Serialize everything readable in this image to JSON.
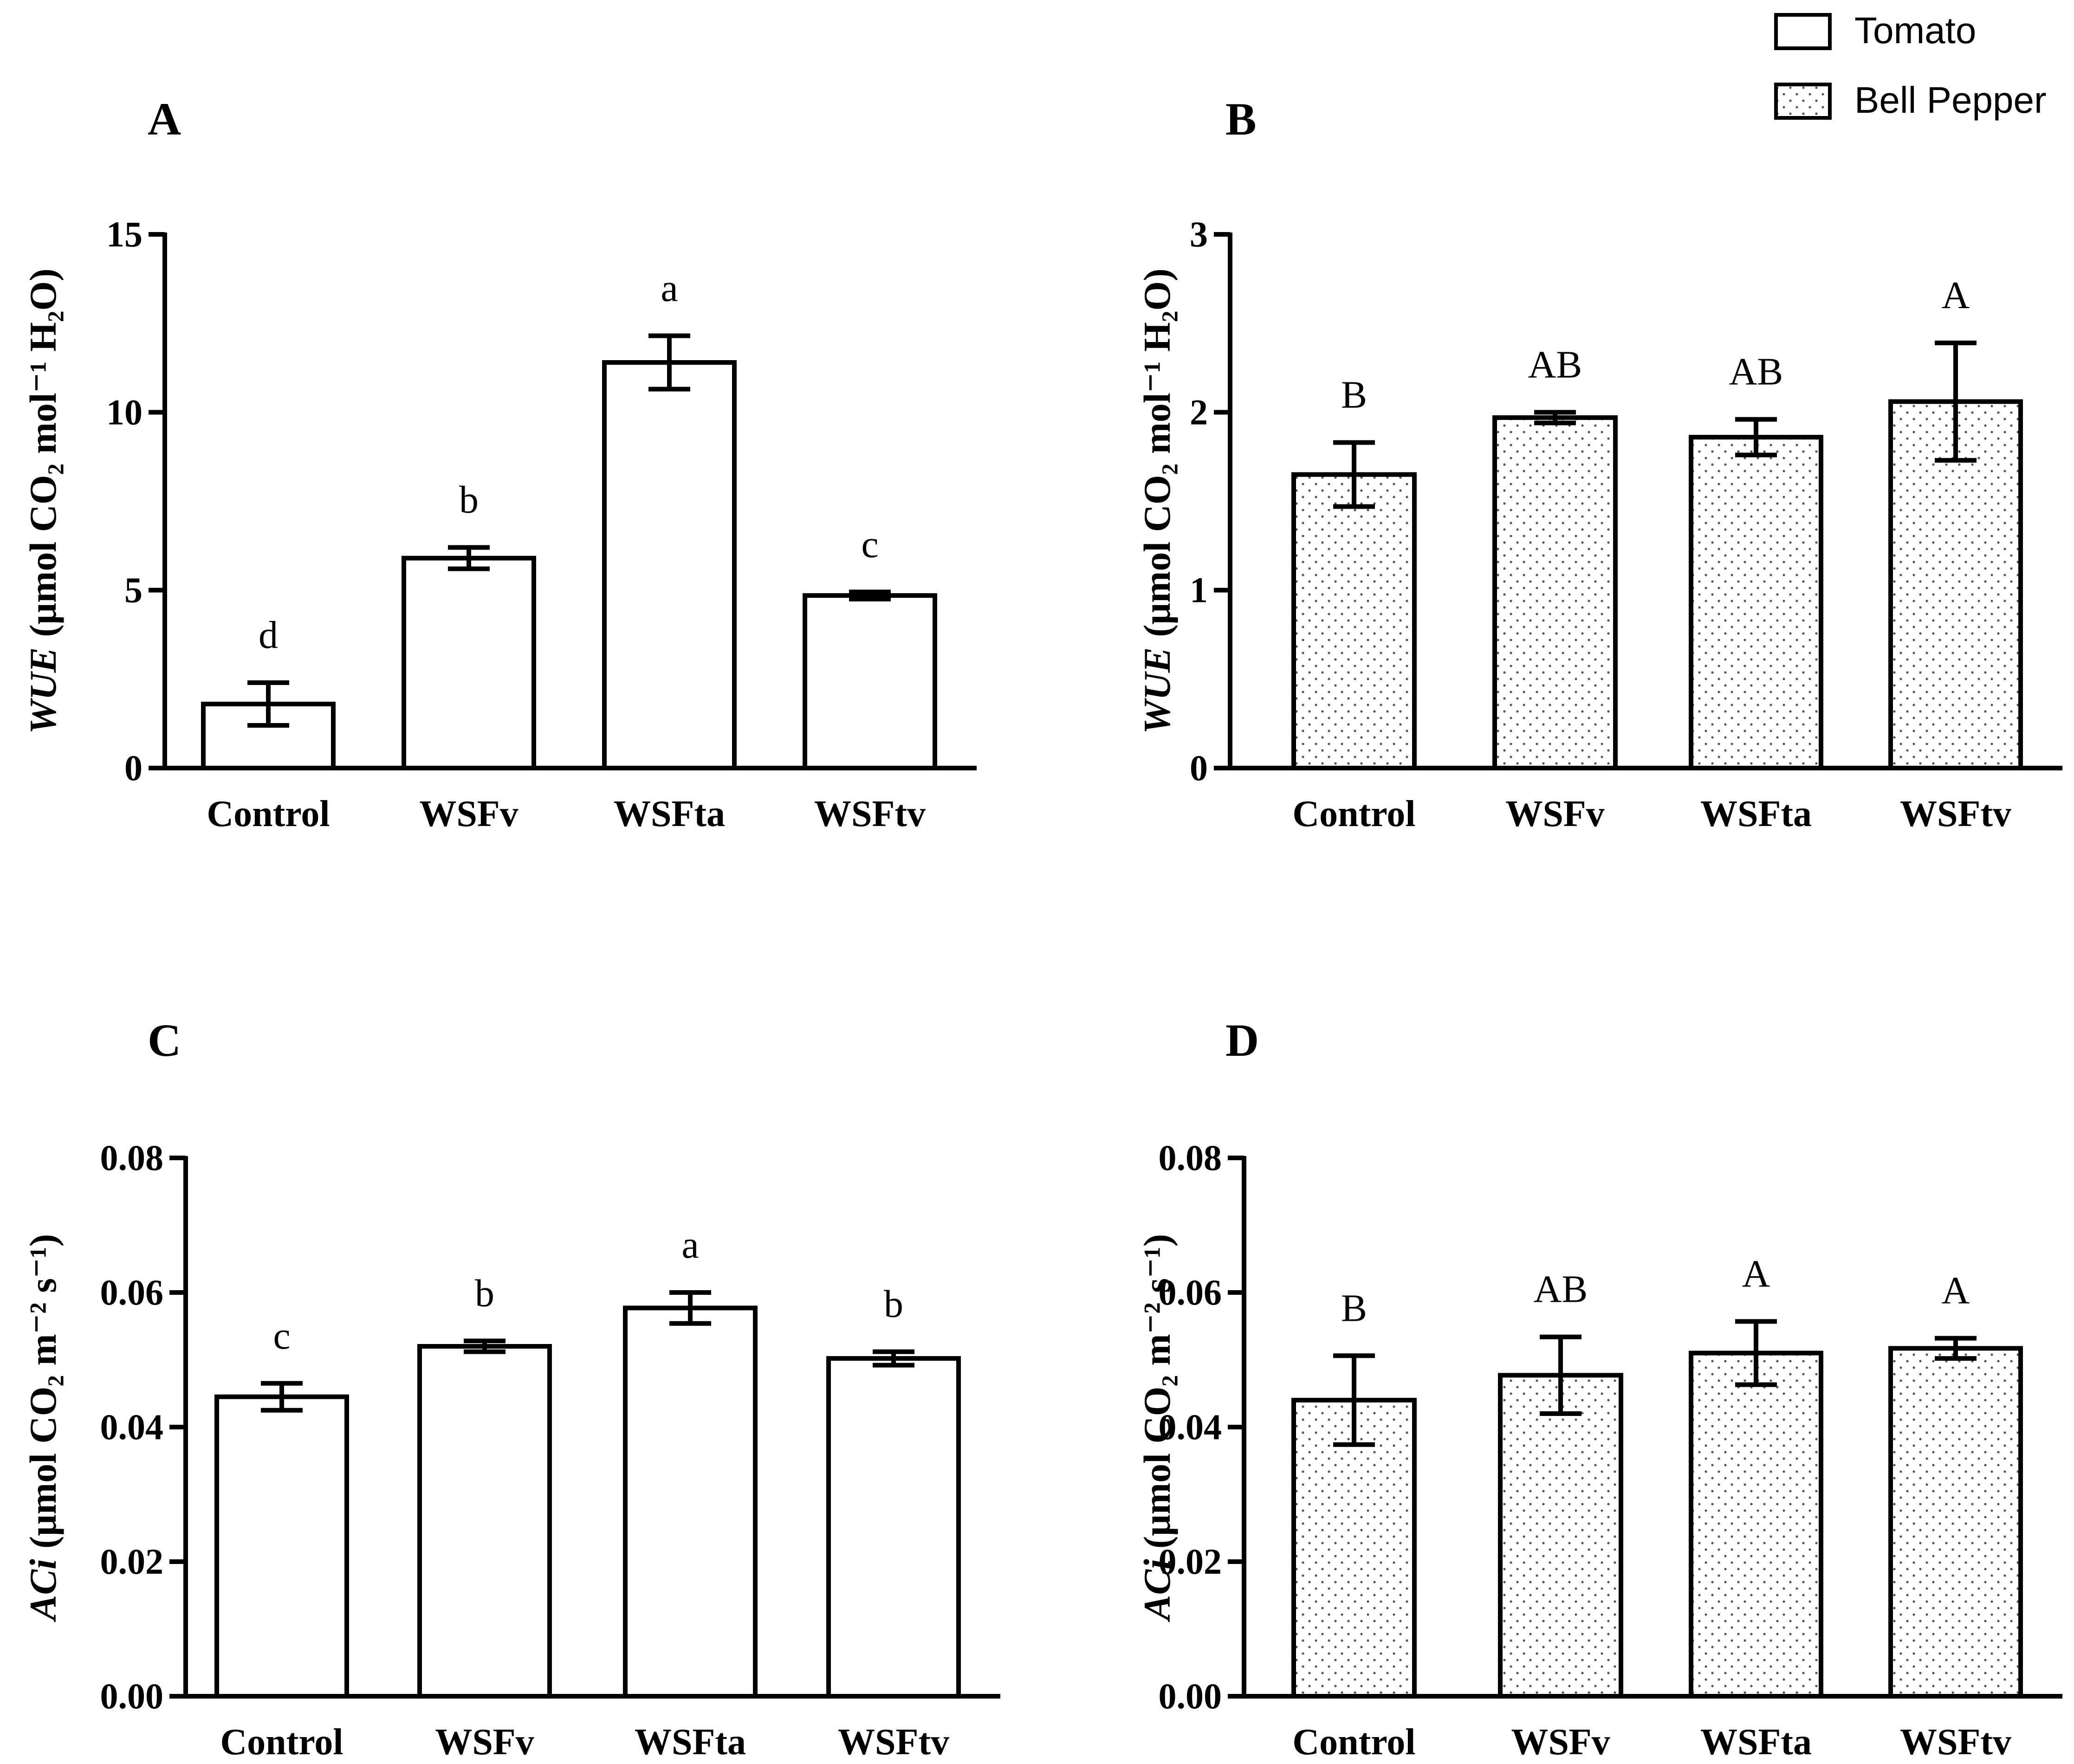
{
  "legend": {
    "items": [
      {
        "label": "Tomato",
        "pattern": "plain"
      },
      {
        "label": "Bell Pepper",
        "pattern": "dots"
      }
    ]
  },
  "chart_data": [
    {
      "panel": "A",
      "type": "bar",
      "crop": "Tomato",
      "categories": [
        "Control",
        "WSFv",
        "WSFta",
        "WSFtv"
      ],
      "values": [
        1.8,
        5.9,
        11.4,
        4.85
      ],
      "errors": [
        0.6,
        0.3,
        0.75,
        0.1
      ],
      "letters": [
        "d",
        "b",
        "a",
        "c"
      ],
      "ylabel_var": "WUE",
      "ylabel_unit": "(μmol CO₂ mol⁻¹ H₂O)",
      "ylim": [
        0,
        15
      ],
      "yticks": [
        0,
        5,
        10,
        15
      ],
      "ytick_labels": [
        "0",
        "5",
        "10",
        "15"
      ],
      "pattern": "plain"
    },
    {
      "panel": "B",
      "type": "bar",
      "crop": "Bell Pepper",
      "categories": [
        "Control",
        "WSFv",
        "WSFta",
        "WSFtv"
      ],
      "values": [
        1.65,
        1.97,
        1.86,
        2.06
      ],
      "errors": [
        0.18,
        0.03,
        0.1,
        0.33
      ],
      "letters": [
        "B",
        "AB",
        "AB",
        "A"
      ],
      "ylabel_var": "WUE",
      "ylabel_unit": "(μmol CO₂ mol⁻¹ H₂O)",
      "ylim": [
        0,
        3
      ],
      "yticks": [
        0,
        1,
        2,
        3
      ],
      "ytick_labels": [
        "0",
        "1",
        "2",
        "3"
      ],
      "pattern": "dots"
    },
    {
      "panel": "C",
      "type": "bar",
      "crop": "Tomato",
      "categories": [
        "Control",
        "WSFv",
        "WSFta",
        "WSFtv"
      ],
      "values": [
        0.0445,
        0.052,
        0.0577,
        0.0502
      ],
      "errors": [
        0.002,
        0.0008,
        0.0023,
        0.001
      ],
      "letters": [
        "c",
        "b",
        "a",
        "b"
      ],
      "ylabel_var": "ACi",
      "ylabel_unit": "(μmol CO₂ m⁻² s⁻¹)",
      "ylim": [
        0,
        0.08
      ],
      "yticks": [
        0,
        0.02,
        0.04,
        0.06,
        0.08
      ],
      "ytick_labels": [
        "0.00",
        "0.02",
        "0.04",
        "0.06",
        "0.08"
      ],
      "pattern": "plain"
    },
    {
      "panel": "D",
      "type": "bar",
      "crop": "Bell Pepper",
      "categories": [
        "Control",
        "WSFv",
        "WSFta",
        "WSFtv"
      ],
      "values": [
        0.044,
        0.0477,
        0.051,
        0.0517
      ],
      "errors": [
        0.0066,
        0.0057,
        0.0047,
        0.0015
      ],
      "letters": [
        "B",
        "AB",
        "A",
        "A"
      ],
      "ylabel_var": "ACi",
      "ylabel_unit": "(μmol CO₂ m⁻² s⁻¹)",
      "ylim": [
        0,
        0.08
      ],
      "yticks": [
        0,
        0.02,
        0.04,
        0.06,
        0.08
      ],
      "ytick_labels": [
        "0.00",
        "0.02",
        "0.04",
        "0.06",
        "0.08"
      ],
      "pattern": "dots"
    }
  ]
}
